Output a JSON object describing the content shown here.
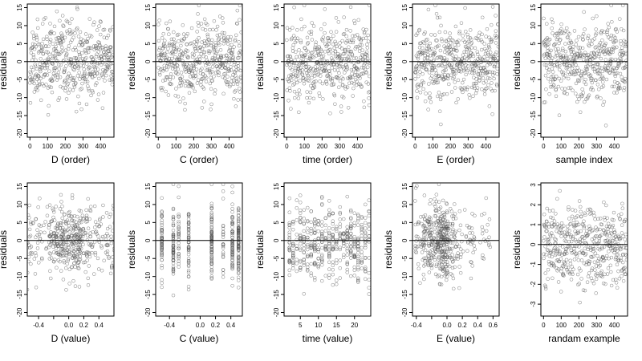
{
  "chart_data": [
    {
      "type": "scatter",
      "ylabel": "residuals",
      "xlabel": "D (order)",
      "xlim": [
        -15,
        475
      ],
      "ylim": [
        -21,
        16
      ],
      "xticks": [
        0,
        100,
        200,
        300,
        400
      ],
      "yticks": [
        -20,
        -15,
        -10,
        -5,
        0,
        5,
        10,
        15
      ],
      "reference_line_y": 0,
      "n_points": 470,
      "spread": "uniform",
      "seed": 11
    },
    {
      "type": "scatter",
      "ylabel": "residuals",
      "xlabel": "C (order)",
      "xlim": [
        -15,
        475
      ],
      "ylim": [
        -21,
        16
      ],
      "xticks": [
        0,
        100,
        200,
        300,
        400
      ],
      "yticks": [
        -20,
        -15,
        -10,
        -5,
        0,
        5,
        10,
        15
      ],
      "reference_line_y": 0,
      "n_points": 470,
      "spread": "uniform",
      "seed": 23
    },
    {
      "type": "scatter",
      "ylabel": "residuals",
      "xlabel": "time (order)",
      "xlim": [
        -15,
        475
      ],
      "ylim": [
        -21,
        16
      ],
      "xticks": [
        0,
        100,
        200,
        300,
        400
      ],
      "yticks": [
        -20,
        -15,
        -10,
        -5,
        0,
        5,
        10,
        15
      ],
      "reference_line_y": 0,
      "n_points": 470,
      "spread": "uniform",
      "seed": 37
    },
    {
      "type": "scatter",
      "ylabel": "residuals",
      "xlabel": "E (order)",
      "xlim": [
        -15,
        475
      ],
      "ylim": [
        -21,
        16
      ],
      "xticks": [
        0,
        100,
        200,
        300,
        400
      ],
      "yticks": [
        -20,
        -15,
        -10,
        -5,
        0,
        5,
        10,
        15
      ],
      "reference_line_y": 0,
      "n_points": 470,
      "spread": "uniform",
      "seed": 41
    },
    {
      "type": "scatter",
      "ylabel": "residuals",
      "xlabel": "sample index",
      "xlim": [
        -15,
        475
      ],
      "ylim": [
        -21,
        16
      ],
      "xticks": [
        0,
        100,
        200,
        300,
        400
      ],
      "yticks": [
        -20,
        -15,
        -10,
        -5,
        0,
        5,
        10,
        15
      ],
      "reference_line_y": 0,
      "n_points": 470,
      "spread": "uniform",
      "seed": 53
    },
    {
      "type": "scatter",
      "ylabel": "residuals",
      "xlabel": "D (value)",
      "xlim": [
        -0.55,
        0.6
      ],
      "ylim": [
        -21,
        16
      ],
      "xticks": [
        -0.4,
        -0.2,
        0.0,
        0.2,
        0.4
      ],
      "xtick_labels": [
        "-0.4",
        "",
        "0.0",
        "0.2",
        "0.4"
      ],
      "yticks": [
        -20,
        -15,
        -10,
        -5,
        0,
        5,
        10,
        15
      ],
      "reference_line_y": 0,
      "n_points": 470,
      "spread": "mixed",
      "clusters": [
        -0.5,
        -0.35,
        -0.2,
        -0.05,
        0.1,
        0.25,
        0.4,
        0.55
      ],
      "cluster_weights": [
        1,
        1,
        2,
        3,
        4,
        2,
        1,
        1
      ],
      "seed": 61
    },
    {
      "type": "scatter",
      "ylabel": "residuals",
      "xlabel": "C (value)",
      "xlim": [
        -0.58,
        0.55
      ],
      "ylim": [
        -21,
        16
      ],
      "xticks": [
        -0.4,
        -0.2,
        0.0,
        0.2,
        0.4
      ],
      "xtick_labels": [
        "-0.4",
        "",
        "0.0",
        "0.2",
        "0.4"
      ],
      "yticks": [
        -20,
        -15,
        -10,
        -5,
        0,
        5,
        10,
        15
      ],
      "reference_line_y": 0,
      "n_points": 470,
      "spread": "columns",
      "clusters": [
        -0.5,
        -0.35,
        -0.28,
        -0.15,
        0.15,
        0.3,
        0.42,
        0.5
      ],
      "cluster_weights": [
        2,
        2,
        1,
        2,
        3,
        1,
        2,
        3
      ],
      "seed": 71
    },
    {
      "type": "scatter",
      "ylabel": "residuals",
      "xlabel": "time (value)",
      "xlim": [
        0.5,
        24.5
      ],
      "ylim": [
        -21,
        16
      ],
      "xticks": [
        5,
        10,
        15,
        20
      ],
      "yticks": [
        -20,
        -15,
        -10,
        -5,
        0,
        5,
        10,
        15
      ],
      "reference_line_y": 0,
      "n_points": 470,
      "spread": "columns",
      "clusters": [
        2,
        3,
        4,
        5,
        6,
        7,
        8,
        9,
        10,
        11,
        12,
        13,
        14,
        15,
        16,
        17,
        18,
        19,
        20,
        21,
        22,
        23,
        24
      ],
      "cluster_weights": [
        1,
        1,
        1,
        1,
        1,
        1,
        1,
        1,
        1,
        1,
        1,
        1,
        1,
        1,
        1,
        1,
        1,
        1,
        1,
        1,
        1,
        1,
        1
      ],
      "seed": 83
    },
    {
      "type": "scatter",
      "ylabel": "residuals",
      "xlabel": "E (value)",
      "xlim": [
        -0.45,
        0.68
      ],
      "ylim": [
        -21,
        16
      ],
      "xticks": [
        -0.4,
        -0.2,
        0.0,
        0.2,
        0.4,
        0.6
      ],
      "xtick_labels": [
        "-0.4",
        "",
        "0.0",
        "0.2",
        "0.4",
        "0.6"
      ],
      "yticks": [
        -20,
        -15,
        -10,
        -5,
        0,
        5,
        10,
        15
      ],
      "reference_line_y": 0,
      "n_points": 470,
      "spread": "mixed",
      "clusters": [
        -0.35,
        -0.25,
        -0.18,
        -0.1,
        -0.05,
        0.05,
        0.15,
        0.3,
        0.5
      ],
      "cluster_weights": [
        2,
        2,
        2,
        3,
        6,
        2,
        1,
        1,
        1
      ],
      "seed": 97
    },
    {
      "type": "scatter",
      "ylabel": "residuals",
      "xlabel": "randam example",
      "xlim": [
        -15,
        475
      ],
      "ylim": [
        -3.6,
        3.1
      ],
      "xticks": [
        0,
        100,
        200,
        300,
        400
      ],
      "yticks": [
        -3,
        -2,
        -1,
        0,
        1,
        2,
        3
      ],
      "reference_line_y": 0,
      "n_points": 470,
      "spread": "normal",
      "sd": 1.0,
      "seed": 101
    }
  ],
  "style": {
    "point_color": "#555555",
    "axis_color": "#000000",
    "background": "#ffffff"
  }
}
